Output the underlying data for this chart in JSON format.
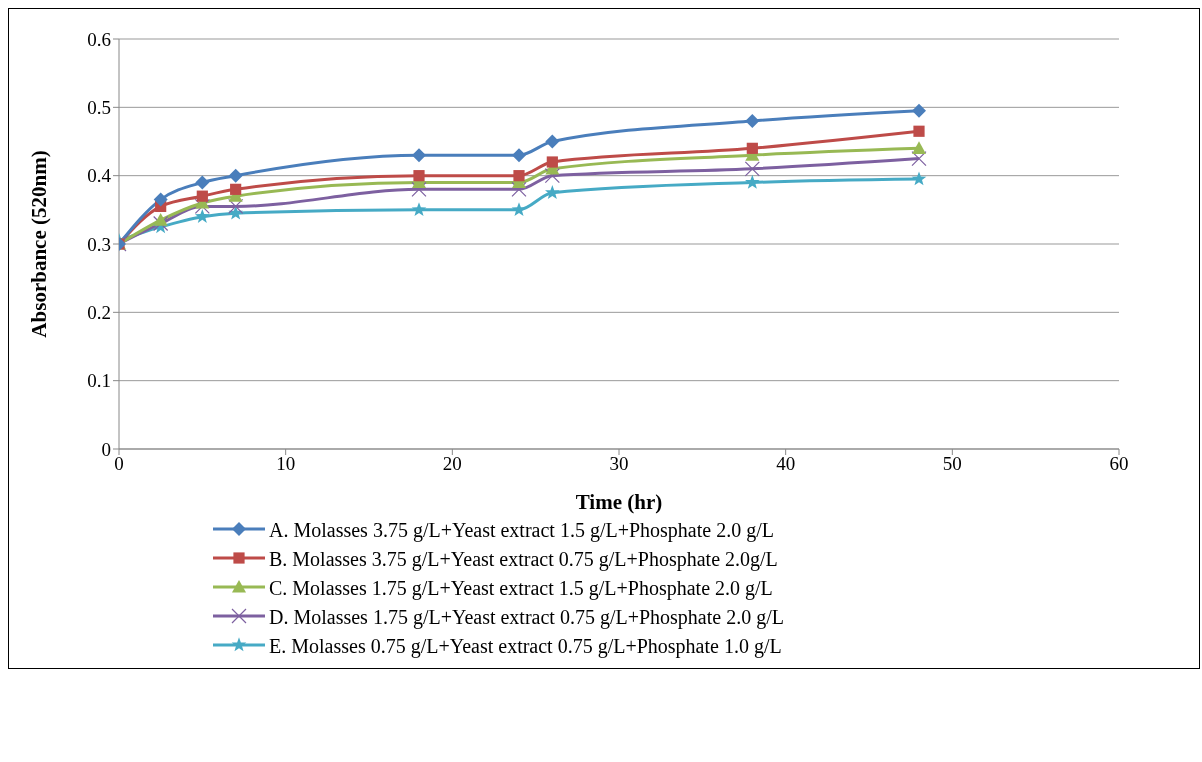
{
  "chart_data": {
    "type": "line",
    "xlabel": "Time (hr)",
    "ylabel": "Absorbance (520nm)",
    "x": [
      0,
      2.5,
      5,
      7,
      18,
      24,
      26,
      38,
      48
    ],
    "series": [
      {
        "name": "A. Molasses 3.75 g/L+Yeast extract 1.5 g/L+Phosphate 2.0 g/L",
        "color": "#4a7ebb",
        "marker": "diamond",
        "values": [
          0.3,
          0.365,
          0.39,
          0.4,
          0.43,
          0.43,
          0.45,
          0.48,
          0.495
        ]
      },
      {
        "name": "B. Molasses 3.75 g/L+Yeast extract 0.75 g/L+Phosphate 2.0g/L",
        "color": "#be4b48",
        "marker": "square",
        "values": [
          0.3,
          0.355,
          0.37,
          0.38,
          0.4,
          0.4,
          0.42,
          0.44,
          0.465
        ]
      },
      {
        "name": "C. Molasses 1.75 g/L+Yeast extract 1.5 g/L+Phosphate 2.0 g/L",
        "color": "#98b954",
        "marker": "triangle",
        "values": [
          0.3,
          0.335,
          0.36,
          0.37,
          0.39,
          0.39,
          0.41,
          0.43,
          0.44
        ]
      },
      {
        "name": "D. Molasses 1.75 g/L+Yeast extract 0.75 g/L+Phosphate 2.0 g/L",
        "color": "#7d60a0",
        "marker": "cross",
        "values": [
          0.3,
          0.33,
          0.355,
          0.355,
          0.38,
          0.38,
          0.4,
          0.41,
          0.425
        ]
      },
      {
        "name": "E. Molasses 0.75 g/L+Yeast extract 0.75 g/L+Phosphate 1.0 g/L",
        "color": "#46aac5",
        "marker": "star",
        "values": [
          0.305,
          0.325,
          0.34,
          0.345,
          0.35,
          0.35,
          0.375,
          0.39,
          0.395
        ]
      }
    ],
    "xlim": [
      0,
      60
    ],
    "xticks": [
      0,
      10,
      20,
      30,
      40,
      50,
      60
    ],
    "ylim": [
      0,
      0.6
    ],
    "yticks": [
      0,
      0.1,
      0.2,
      0.3,
      0.4,
      0.5,
      0.6
    ],
    "grid": "y",
    "legend": "bottom"
  }
}
